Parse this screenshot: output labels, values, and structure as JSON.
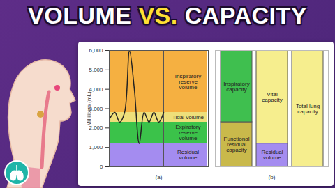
{
  "header": {
    "title": "VOLUME VS. CAPACITY"
  },
  "chart_data": [
    {
      "type": "area",
      "stacked": true,
      "xlabel": "(a)",
      "ylabel": "Milliliters (mL)",
      "categories": [
        null,
        null,
        null,
        null,
        null,
        null,
        null,
        null,
        null,
        null,
        null,
        null,
        null,
        null,
        null,
        null,
        null,
        null,
        null,
        null,
        null
      ],
      "ylim": [
        0,
        6000
      ],
      "yticks": [
        0,
        1000,
        2000,
        3000,
        4000,
        5000,
        6000
      ],
      "series": [
        {
          "name": "Residual volume",
          "color": "#a48cf0",
          "values": [
            1200,
            1200,
            1200,
            1200,
            1200,
            1200,
            1200,
            1200,
            1200,
            1200,
            1200,
            1200,
            1200,
            1200,
            1200,
            1200,
            1200,
            1200,
            1200,
            1200,
            1200
          ]
        },
        {
          "name": "Expiratory reserve volume",
          "color": "#3bc24a",
          "values": [
            1100,
            1100,
            1100,
            1100,
            1100,
            1100,
            1100,
            1100,
            1100,
            1100,
            1100,
            1100,
            1100,
            1100,
            1100,
            1100,
            1100,
            1100,
            1100,
            1100,
            1100
          ]
        },
        {
          "name": "Tidal volume",
          "color": "#eedf7a",
          "values": [
            500,
            500,
            500,
            500,
            500,
            500,
            500,
            500,
            500,
            500,
            500,
            500,
            500,
            500,
            500,
            500,
            500,
            500,
            500,
            500,
            500
          ]
        },
        {
          "name": "Inspiratory reserve volume",
          "color": "#f5b041",
          "values": [
            3200,
            3200,
            3200,
            3200,
            3200,
            3200,
            3200,
            3200,
            3200,
            3200,
            3200,
            3200,
            3200,
            3200,
            3200,
            3200,
            3200,
            3200,
            3200,
            3200,
            3200
          ]
        },
        {
          "type": "line",
          "color": "#222222",
          "values": [
            2500,
            2800,
            2300,
            2800,
            6000,
            4000,
            1200,
            2800,
            2300,
            2800,
            2300,
            2800,
            null,
            null,
            null,
            null,
            null,
            null,
            null,
            null,
            null
          ]
        }
      ]
    },
    {
      "type": "bar",
      "stacked": true,
      "xlabel": "(b)",
      "tick_labels": false,
      "categories": [
        null,
        null,
        null
      ],
      "ylim": [
        0,
        6000
      ],
      "series": [
        {
          "name": "Functional residual capacity",
          "color": "#c9b94b",
          "values": [
            2300,
            null,
            null
          ]
        },
        {
          "name": "Inspiratory capacity",
          "color": "#3fbf4f",
          "values": [
            3700,
            null,
            null
          ]
        },
        {
          "name": "Residual volume",
          "color": "#a48cf0",
          "values": [
            null,
            1200,
            null
          ]
        },
        {
          "name": "Vital capacity",
          "color": "#f6ee8e",
          "values": [
            null,
            4800,
            null
          ]
        },
        {
          "name": "Total lung capacity",
          "color": "#f6ee8e",
          "values": [
            null,
            null,
            6000
          ]
        }
      ]
    }
  ]
}
